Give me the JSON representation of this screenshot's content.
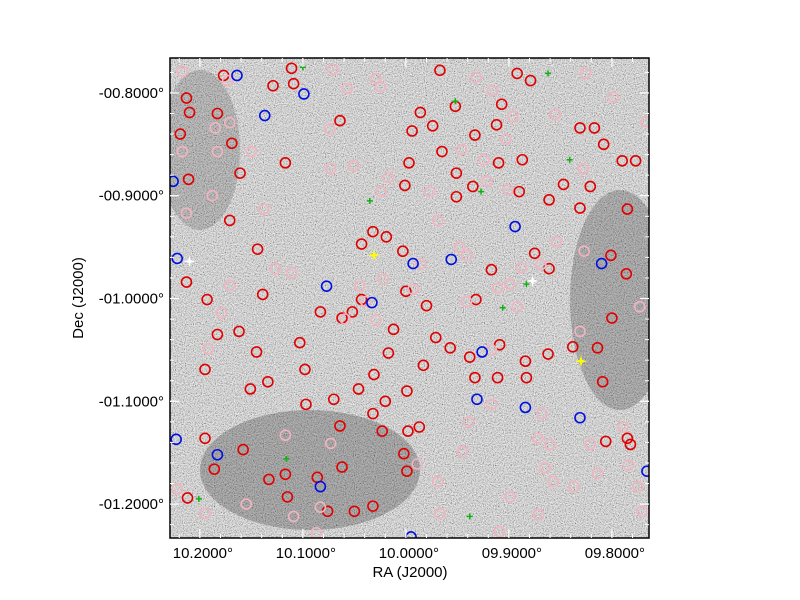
{
  "chart_data": {
    "type": "scatter",
    "title": "",
    "xlabel": "RA (J2000)",
    "ylabel": "Dec (J2000)",
    "xlim": [
      10.229,
      9.764
    ],
    "ylim": [
      -1.233,
      -0.766
    ],
    "x_reversed": true,
    "grid": false,
    "background": "grayscale sky image",
    "x_ticks": [
      10.2,
      10.1,
      10.0,
      9.9,
      9.8
    ],
    "x_tick_labels": [
      "10.2000°",
      "10.1000°",
      "10.0000°",
      "09.9000°",
      "09.8000°"
    ],
    "y_ticks": [
      -0.8,
      -0.9,
      -1.0,
      -1.1,
      -1.2
    ],
    "y_tick_labels": [
      "-00.8000°",
      "-00.9000°",
      "-01.0000°",
      "-01.1000°",
      "-01.2000°"
    ],
    "colors": {
      "red": "#e00000",
      "pink": "#f2b4c0",
      "blue": "#0010e0",
      "green": "#10b010",
      "yellow": "#ffff00",
      "white": "#ffffff"
    },
    "series": [
      {
        "marker": "circle",
        "color": "red",
        "points": [
          [
            10.213,
            -0.805
          ],
          [
            10.21,
            -0.819
          ],
          [
            10.219,
            -0.84
          ],
          [
            10.169,
            -0.849
          ],
          [
            10.183,
            -0.82
          ],
          [
            10.211,
            -0.884
          ],
          [
            10.161,
            -0.878
          ],
          [
            10.117,
            -0.868
          ],
          [
            10.171,
            -0.924
          ],
          [
            10.144,
            -0.952
          ],
          [
            10.213,
            -0.984
          ],
          [
            10.193,
            -1.001
          ],
          [
            10.139,
            -0.996
          ],
          [
            10.183,
            -1.035
          ],
          [
            10.162,
            -1.032
          ],
          [
            10.145,
            -1.052
          ],
          [
            10.195,
            -1.069
          ],
          [
            10.151,
            -1.088
          ],
          [
            10.134,
            -1.081
          ],
          [
            10.103,
            -1.043
          ],
          [
            10.098,
            -1.069
          ],
          [
            10.083,
            -1.013
          ],
          [
            10.062,
            -1.019
          ],
          [
            10.052,
            -1.013
          ],
          [
            10.032,
            -0.935
          ],
          [
            10.043,
            -0.947
          ],
          [
            10.043,
            -1.001
          ],
          [
            10.012,
            -1.03
          ],
          [
            10.031,
            -1.074
          ],
          [
            10.046,
            -1.088
          ],
          [
            10.02,
            -1.1
          ],
          [
            9.999,
            -1.09
          ],
          [
            10.017,
            -1.053
          ],
          [
            9.983,
            -1.065
          ],
          [
            9.971,
            -1.038
          ],
          [
            9.98,
            -1.007
          ],
          [
            10.0,
            -0.993
          ],
          [
            9.957,
            -1.048
          ],
          [
            9.938,
            -1.057
          ],
          [
            9.933,
            -1.077
          ],
          [
            9.911,
            -1.077
          ],
          [
            9.909,
            -1.045
          ],
          [
            9.883,
            -1.077
          ],
          [
            9.862,
            -1.054
          ],
          [
            9.838,
            -1.047
          ],
          [
            9.814,
            -1.048
          ],
          [
            9.8,
            -1.019
          ],
          [
            9.786,
            -0.976
          ],
          [
            9.801,
            -0.958
          ],
          [
            9.861,
            -0.971
          ],
          [
            9.875,
            -0.956
          ],
          [
            9.917,
            -0.972
          ],
          [
            9.932,
            -1.001
          ],
          [
            10.003,
            -0.954
          ],
          [
            10.019,
            -0.94
          ],
          [
            9.997,
            -0.868
          ],
          [
            10.001,
            -0.89
          ],
          [
            9.994,
            -0.837
          ],
          [
            9.974,
            -0.832
          ],
          [
            9.965,
            -0.857
          ],
          [
            9.951,
            -0.878
          ],
          [
            9.935,
            -0.891
          ],
          [
            9.951,
            -0.901
          ],
          [
            9.91,
            -0.868
          ],
          [
            9.887,
            -0.865
          ],
          [
            9.89,
            -0.896
          ],
          [
            9.861,
            -0.904
          ],
          [
            9.847,
            -0.889
          ],
          [
            9.821,
            -0.891
          ],
          [
            9.817,
            -0.834
          ],
          [
            9.831,
            -0.834
          ],
          [
            9.808,
            -0.85
          ],
          [
            9.79,
            -0.866
          ],
          [
            9.777,
            -0.866
          ],
          [
            9.785,
            -0.913
          ],
          [
            9.831,
            -0.912
          ],
          [
            9.884,
            -1.061
          ],
          [
            9.987,
            -1.125
          ],
          [
            9.998,
            -1.129
          ],
          [
            10.002,
            -1.151
          ],
          [
            9.999,
            -1.168
          ],
          [
            10.032,
            -1.202
          ],
          [
            10.05,
            -1.207
          ],
          [
            10.076,
            -1.207
          ],
          [
            10.115,
            -1.193
          ],
          [
            10.133,
            -1.176
          ],
          [
            10.117,
            -1.171
          ],
          [
            10.158,
            -1.147
          ],
          [
            10.195,
            -1.136
          ],
          [
            10.212,
            -1.194
          ],
          [
            10.186,
            -1.166
          ],
          [
            10.086,
            -1.174
          ],
          [
            10.062,
            -1.164
          ],
          [
            10.064,
            -1.124
          ],
          [
            10.097,
            -1.103
          ],
          [
            10.07,
            -1.098
          ],
          [
            10.032,
            -1.112
          ],
          [
            10.023,
            -1.129
          ],
          [
            10.129,
            -0.793
          ],
          [
            10.109,
            -0.791
          ],
          [
            10.064,
            -0.827
          ],
          [
            9.986,
            -0.819
          ],
          [
            9.933,
            -0.841
          ],
          [
            9.912,
            -0.831
          ],
          [
            9.907,
            -0.811
          ],
          [
            9.892,
            -0.781
          ],
          [
            9.967,
            -0.778
          ],
          [
            10.111,
            -0.776
          ],
          [
            9.879,
            -0.788
          ],
          [
            9.952,
            -0.813
          ],
          [
            9.809,
            -1.081
          ],
          [
            9.785,
            -1.136
          ],
          [
            9.806,
            -1.139
          ],
          [
            9.782,
            -1.142
          ],
          [
            10.177,
            -0.783
          ]
        ]
      },
      {
        "marker": "circle",
        "color": "pink",
        "points": [
          [
            10.217,
            -0.779
          ],
          [
            10.173,
            -0.788
          ],
          [
            10.057,
            -0.796
          ],
          [
            10.025,
            -0.794
          ],
          [
            10.071,
            -0.777
          ],
          [
            10.029,
            -0.786
          ],
          [
            10.171,
            -0.829
          ],
          [
            10.185,
            -0.834
          ],
          [
            10.183,
            -0.857
          ],
          [
            10.15,
            -0.857
          ],
          [
            10.217,
            -0.857
          ],
          [
            10.188,
            -0.9
          ],
          [
            10.213,
            -0.917
          ],
          [
            10.138,
            -0.913
          ],
          [
            10.073,
            -0.874
          ],
          [
            10.051,
            -0.871
          ],
          [
            10.074,
            -0.835
          ],
          [
            10.024,
            -0.896
          ],
          [
            10.017,
            -0.882
          ],
          [
            9.977,
            -0.896
          ],
          [
            9.969,
            -0.924
          ],
          [
            9.924,
            -0.865
          ],
          [
            9.946,
            -0.855
          ],
          [
            9.921,
            -0.886
          ],
          [
            9.903,
            -0.845
          ],
          [
            9.901,
            -0.894
          ],
          [
            9.916,
            -0.798
          ],
          [
            9.932,
            -0.785
          ],
          [
            9.896,
            -0.823
          ],
          [
            9.855,
            -0.821
          ],
          [
            9.826,
            -0.781
          ],
          [
            9.799,
            -0.804
          ],
          [
            9.767,
            -0.828
          ],
          [
            9.828,
            -0.874
          ],
          [
            9.827,
            -0.954
          ],
          [
            9.854,
            -0.945
          ],
          [
            9.888,
            -0.97
          ],
          [
            9.899,
            -0.986
          ],
          [
            9.869,
            -0.967
          ],
          [
            9.911,
            -0.99
          ],
          [
            9.892,
            -1.008
          ],
          [
            9.941,
            -0.958
          ],
          [
            9.948,
            -0.95
          ],
          [
            9.941,
            -1.003
          ],
          [
            9.986,
            -0.966
          ],
          [
            9.993,
            -0.991
          ],
          [
            10.022,
            -0.981
          ],
          [
            10.039,
            -1.003
          ],
          [
            10.059,
            -1.02
          ],
          [
            10.045,
            -0.988
          ],
          [
            10.029,
            -1.021
          ],
          [
            10.127,
            -0.971
          ],
          [
            10.111,
            -0.975
          ],
          [
            10.179,
            -1.014
          ],
          [
            10.192,
            -1.049
          ],
          [
            10.171,
            -0.987
          ],
          [
            10.117,
            -1.133
          ],
          [
            10.073,
            -1.141
          ],
          [
            10.083,
            -1.203
          ],
          [
            10.109,
            -1.212
          ],
          [
            10.087,
            -1.228
          ],
          [
            10.155,
            -1.2
          ],
          [
            10.195,
            -1.209
          ],
          [
            10.222,
            -1.185
          ],
          [
            9.969,
            -1.178
          ],
          [
            9.989,
            -1.161
          ],
          [
            9.967,
            -1.209
          ],
          [
            9.945,
            -1.149
          ],
          [
            9.939,
            -1.12
          ],
          [
            9.917,
            -1.103
          ],
          [
            9.917,
            -1.05
          ],
          [
            9.868,
            -1.112
          ],
          [
            9.872,
            -1.136
          ],
          [
            9.86,
            -1.142
          ],
          [
            9.865,
            -1.165
          ],
          [
            9.857,
            -1.178
          ],
          [
            9.837,
            -1.183
          ],
          [
            9.821,
            -1.142
          ],
          [
            9.789,
            -1.125
          ],
          [
            9.784,
            -1.162
          ],
          [
            9.775,
            -1.183
          ],
          [
            9.771,
            -1.207
          ],
          [
            9.814,
            -1.17
          ],
          [
            9.831,
            -1.032
          ],
          [
            9.773,
            -1.008
          ],
          [
            9.871,
            -1.21
          ],
          [
            9.909,
            -1.227
          ],
          [
            9.899,
            -1.193
          ]
        ]
      },
      {
        "marker": "circle",
        "color": "blue",
        "points": [
          [
            10.164,
            -0.783
          ],
          [
            10.137,
            -0.822
          ],
          [
            10.099,
            -0.801
          ],
          [
            10.226,
            -0.886
          ],
          [
            10.222,
            -0.961
          ],
          [
            10.077,
            -0.988
          ],
          [
            10.033,
            -1.004
          ],
          [
            9.993,
            -0.966
          ],
          [
            9.956,
            -0.962
          ],
          [
            9.894,
            -0.93
          ],
          [
            9.81,
            -0.966
          ],
          [
            9.926,
            -1.052
          ],
          [
            9.931,
            -1.098
          ],
          [
            9.884,
            -1.106
          ],
          [
            9.831,
            -1.116
          ],
          [
            10.183,
            -1.152
          ],
          [
            10.083,
            -1.183
          ],
          [
            9.995,
            -1.232
          ],
          [
            9.766,
            -1.168
          ],
          [
            10.223,
            -1.137
          ]
        ]
      },
      {
        "marker": "cross",
        "color": "green",
        "points": [
          [
            10.1,
            -0.775
          ],
          [
            9.862,
            -0.781
          ],
          [
            9.952,
            -0.808
          ],
          [
            9.841,
            -0.865
          ],
          [
            9.927,
            -0.896
          ],
          [
            10.035,
            -0.905
          ],
          [
            9.906,
            -1.009
          ],
          [
            9.883,
            -0.986
          ],
          [
            10.116,
            -1.156
          ],
          [
            9.938,
            -1.212
          ],
          [
            10.201,
            -1.195
          ]
        ]
      },
      {
        "marker": "star",
        "color": "yellow",
        "points": [
          [
            10.031,
            -0.958
          ],
          [
            9.83,
            -1.061
          ]
        ]
      },
      {
        "marker": "star",
        "color": "white",
        "points": [
          [
            10.21,
            -0.964
          ],
          [
            9.877,
            -0.983
          ]
        ]
      }
    ]
  }
}
